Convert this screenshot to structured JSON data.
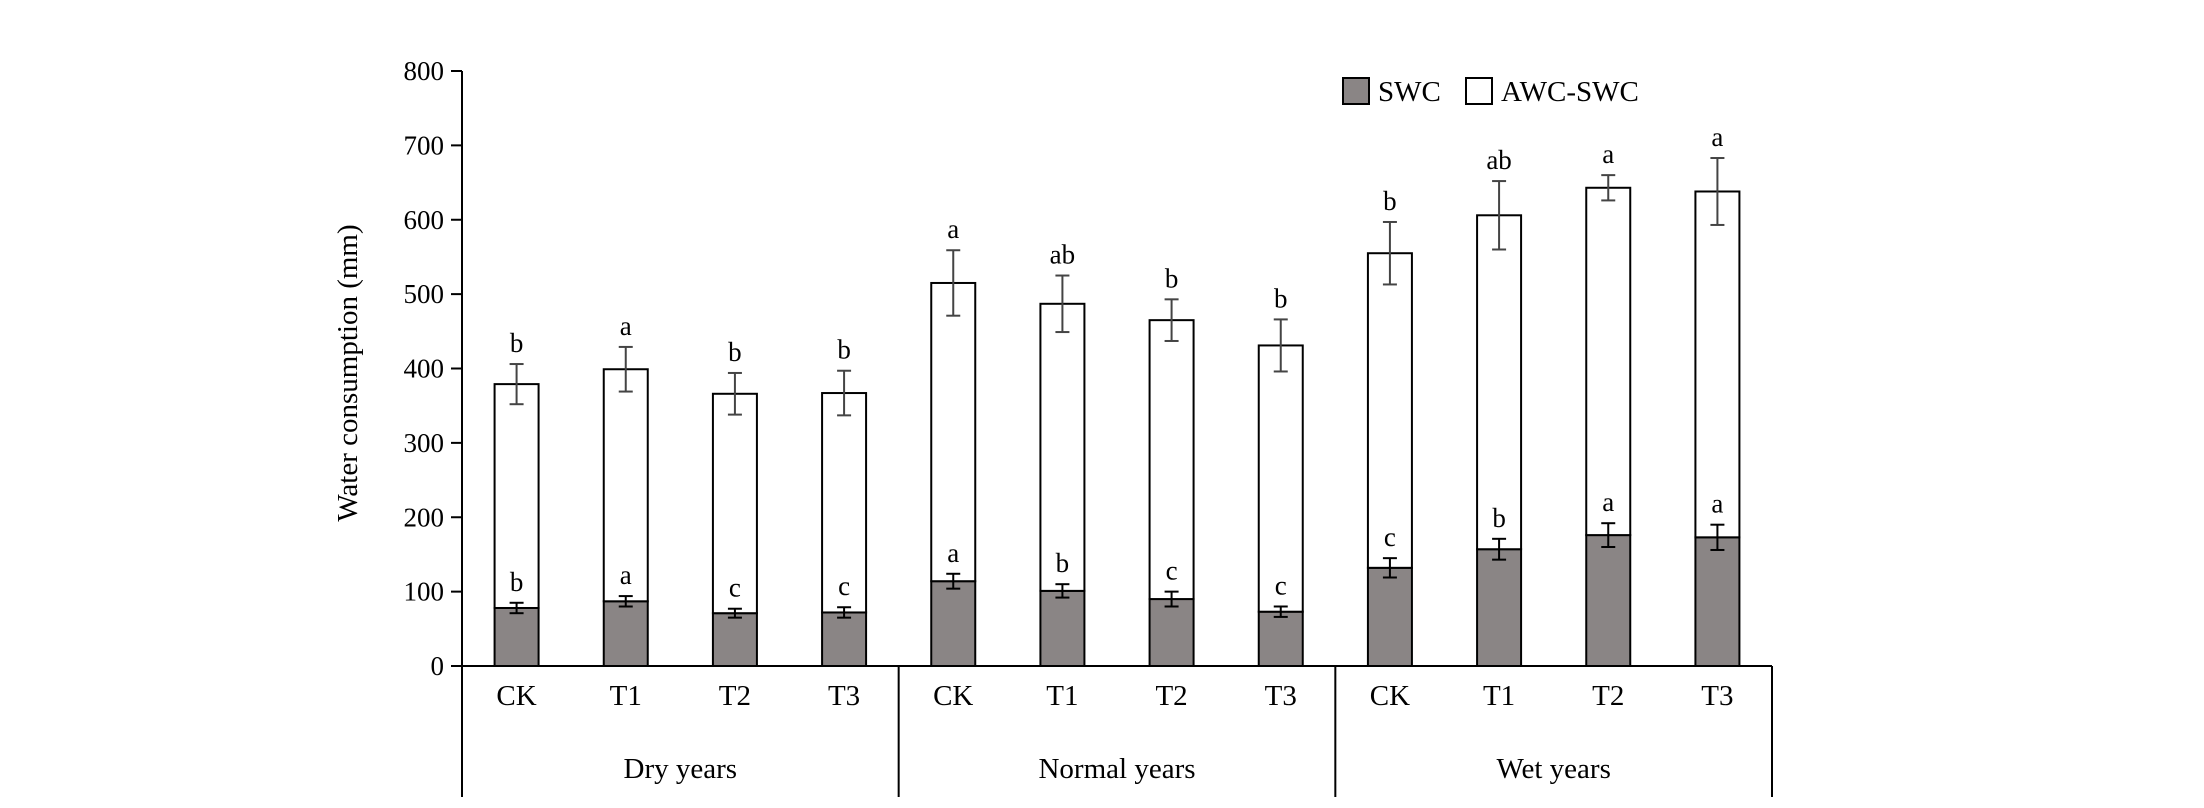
{
  "chart_data": {
    "type": "bar",
    "stacked": true,
    "ylabel": "Water consumption (mm)",
    "ylim": [
      0,
      800
    ],
    "yticks": [
      "0",
      "100",
      "200",
      "300",
      "400",
      "500",
      "600",
      "700",
      "800"
    ],
    "categories": [
      "CK",
      "T1",
      "T2",
      "T3",
      "CK",
      "T1",
      "T2",
      "T3",
      "CK",
      "T1",
      "T2",
      "T3"
    ],
    "groups": [
      {
        "label": "Dry years",
        "span": 4
      },
      {
        "label": "Normal years",
        "span": 4
      },
      {
        "label": "Wet years",
        "span": 4
      }
    ],
    "legend": {
      "position": "top-right",
      "entries": [
        "SWC",
        "AWC-SWC"
      ]
    },
    "series": [
      {
        "name": "SWC",
        "color": "#8a8585",
        "values": [
          78,
          87,
          71,
          72,
          114,
          101,
          90,
          73,
          132,
          157,
          176,
          173
        ],
        "errors": [
          7,
          7,
          6,
          7,
          10,
          9,
          10,
          7,
          13,
          14,
          16,
          17
        ],
        "letters": [
          "b",
          "a",
          "c",
          "c",
          "a",
          "b",
          "c",
          "c",
          "c",
          "b",
          "a",
          "a"
        ]
      },
      {
        "name": "AWC-SWC",
        "color": "#ffffff",
        "values": [
          301,
          312,
          295,
          295,
          401,
          386,
          375,
          358,
          423,
          449,
          467,
          465
        ],
        "totals": [
          379,
          399,
          366,
          367,
          515,
          487,
          465,
          431,
          555,
          606,
          643,
          638
        ],
        "errors": [
          27,
          30,
          28,
          30,
          44,
          38,
          28,
          35,
          42,
          46,
          17,
          45
        ],
        "letters": [
          "b",
          "a",
          "b",
          "b",
          "a",
          "ab",
          "b",
          "b",
          "b",
          "ab",
          "a",
          "a"
        ]
      }
    ]
  }
}
